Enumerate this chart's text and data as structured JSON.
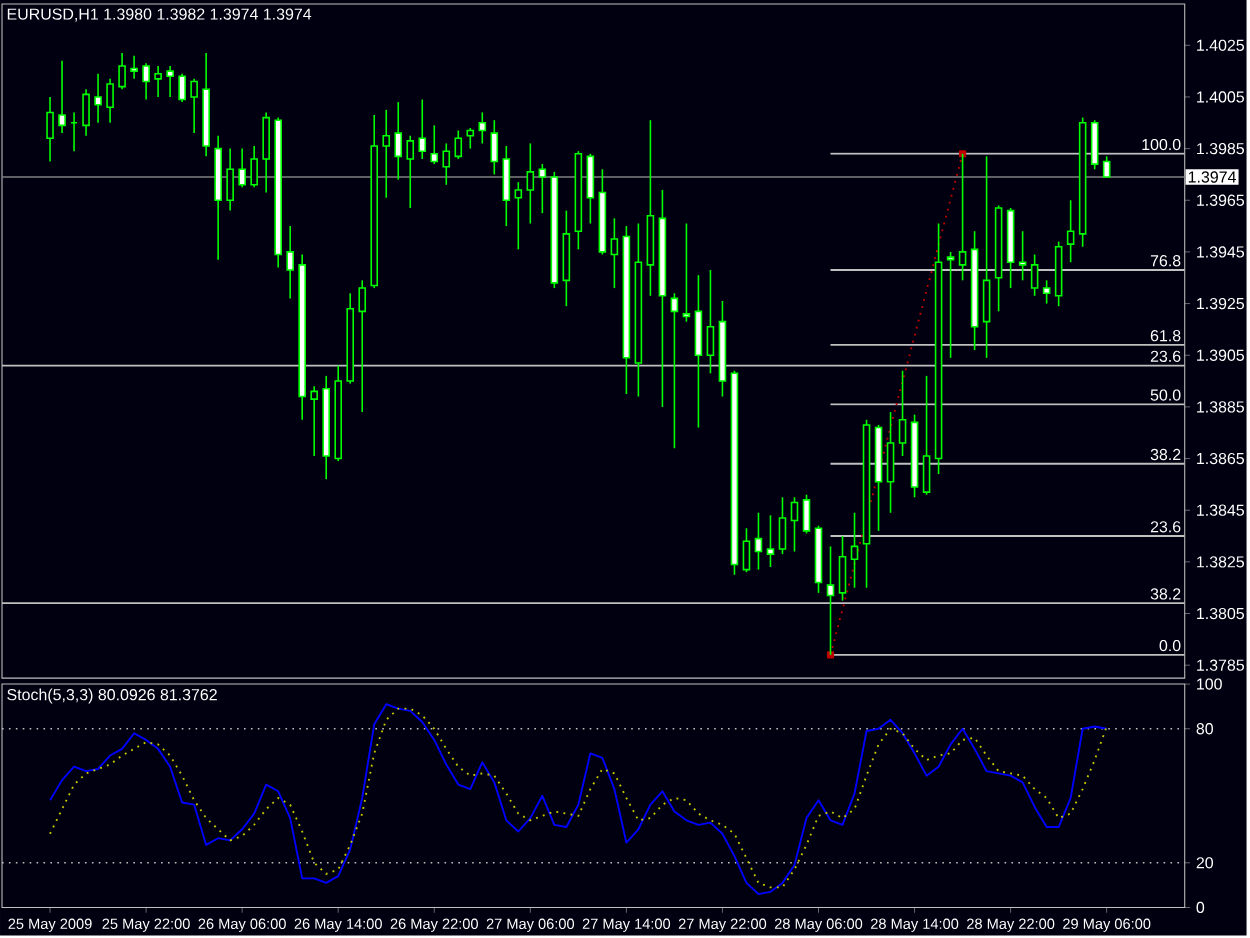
{
  "chart_data": [
    {
      "type": "candlestick",
      "title": "EURUSD,H1 1.3980 1.3982 1.3974 1.3974",
      "color": "#00ff00",
      "x": [
        "2009-05-25T14:00",
        "2009-05-25T15:00",
        "2009-05-25T16:00",
        "2009-05-25T17:00",
        "2009-05-25T18:00",
        "2009-05-25T19:00",
        "2009-05-25T20:00",
        "2009-05-25T21:00",
        "2009-05-25T22:00",
        "2009-05-25T23:00",
        "2009-05-26T00:00",
        "2009-05-26T01:00",
        "2009-05-26T02:00",
        "2009-05-26T03:00",
        "2009-05-26T04:00",
        "2009-05-26T05:00",
        "2009-05-26T06:00",
        "2009-05-26T07:00",
        "2009-05-26T08:00",
        "2009-05-26T09:00",
        "2009-05-26T10:00",
        "2009-05-26T11:00",
        "2009-05-26T12:00",
        "2009-05-26T13:00",
        "2009-05-26T14:00",
        "2009-05-26T15:00",
        "2009-05-26T16:00",
        "2009-05-26T17:00",
        "2009-05-26T18:00",
        "2009-05-26T19:00",
        "2009-05-26T20:00",
        "2009-05-26T21:00",
        "2009-05-26T22:00",
        "2009-05-26T23:00",
        "2009-05-27T00:00",
        "2009-05-27T01:00",
        "2009-05-27T02:00",
        "2009-05-27T03:00",
        "2009-05-27T04:00",
        "2009-05-27T05:00",
        "2009-05-27T06:00",
        "2009-05-27T07:00",
        "2009-05-27T08:00",
        "2009-05-27T09:00",
        "2009-05-27T10:00",
        "2009-05-27T11:00",
        "2009-05-27T12:00",
        "2009-05-27T13:00",
        "2009-05-27T14:00",
        "2009-05-27T15:00",
        "2009-05-27T16:00",
        "2009-05-27T17:00",
        "2009-05-27T18:00",
        "2009-05-27T19:00",
        "2009-05-27T20:00",
        "2009-05-27T21:00",
        "2009-05-27T22:00",
        "2009-05-27T23:00",
        "2009-05-28T00:00",
        "2009-05-28T01:00",
        "2009-05-28T02:00",
        "2009-05-28T03:00",
        "2009-05-28T04:00",
        "2009-05-28T05:00",
        "2009-05-28T06:00",
        "2009-05-28T07:00",
        "2009-05-28T08:00",
        "2009-05-28T09:00",
        "2009-05-28T10:00",
        "2009-05-28T11:00",
        "2009-05-28T12:00",
        "2009-05-28T13:00",
        "2009-05-28T14:00",
        "2009-05-28T15:00",
        "2009-05-28T16:00",
        "2009-05-28T17:00",
        "2009-05-28T18:00",
        "2009-05-28T19:00",
        "2009-05-28T20:00",
        "2009-05-28T21:00",
        "2009-05-28T22:00",
        "2009-05-28T23:00",
        "2009-05-29T00:00",
        "2009-05-29T01:00",
        "2009-05-29T02:00",
        "2009-05-29T03:00",
        "2009-05-29T04:00",
        "2009-05-29T05:00",
        "2009-05-29T06:00"
      ],
      "ohlc": [
        [
          1.3989,
          1.4005,
          1.398,
          1.3999
        ],
        [
          1.3998,
          1.4019,
          1.3991,
          1.3994
        ],
        [
          1.3995,
          1.3999,
          1.3984,
          1.3995
        ],
        [
          1.3994,
          1.4008,
          1.399,
          1.4006
        ],
        [
          1.4005,
          1.4014,
          1.3995,
          1.4002
        ],
        [
          1.4001,
          1.4012,
          1.3995,
          1.401
        ],
        [
          1.4009,
          1.4022,
          1.4008,
          1.4017
        ],
        [
          1.4016,
          1.4021,
          1.4012,
          1.4015
        ],
        [
          1.4017,
          1.4018,
          1.4004,
          1.4011
        ],
        [
          1.4012,
          1.4017,
          1.4005,
          1.4014
        ],
        [
          1.4015,
          1.4017,
          1.4005,
          1.4013
        ],
        [
          1.4013,
          1.4014,
          1.4003,
          1.4004
        ],
        [
          1.4005,
          1.4012,
          1.3991,
          1.4011
        ],
        [
          1.4008,
          1.4022,
          1.3982,
          1.3986
        ],
        [
          1.3985,
          1.399,
          1.3942,
          1.3965
        ],
        [
          1.3965,
          1.3985,
          1.3961,
          1.3977
        ],
        [
          1.3977,
          1.3985,
          1.397,
          1.3971
        ],
        [
          1.3971,
          1.3986,
          1.397,
          1.3981
        ],
        [
          1.3981,
          1.3999,
          1.3968,
          1.3997
        ],
        [
          1.3996,
          1.3997,
          1.3939,
          1.3944
        ],
        [
          1.3945,
          1.3955,
          1.3927,
          1.3938
        ],
        [
          1.394,
          1.3944,
          1.388,
          1.3889
        ],
        [
          1.3888,
          1.3893,
          1.3866,
          1.3891
        ],
        [
          1.3892,
          1.3897,
          1.3857,
          1.3866
        ],
        [
          1.3865,
          1.3901,
          1.3864,
          1.3895
        ],
        [
          1.3895,
          1.3929,
          1.3894,
          1.3923
        ],
        [
          1.3922,
          1.3934,
          1.3883,
          1.3931
        ],
        [
          1.3932,
          1.3998,
          1.3931,
          1.3986
        ],
        [
          1.3986,
          1.4,
          1.3966,
          1.399
        ],
        [
          1.3991,
          1.4003,
          1.3973,
          1.3982
        ],
        [
          1.3981,
          1.399,
          1.3962,
          1.3988
        ],
        [
          1.3989,
          1.4004,
          1.3981,
          1.3984
        ],
        [
          1.3983,
          1.3994,
          1.3979,
          1.398
        ],
        [
          1.3978,
          1.3987,
          1.3971,
          1.3984
        ],
        [
          1.3982,
          1.3992,
          1.3981,
          1.3989
        ],
        [
          1.399,
          1.3993,
          1.3985,
          1.3992
        ],
        [
          1.3995,
          1.3999,
          1.3987,
          1.3992
        ],
        [
          1.3991,
          1.3996,
          1.3975,
          1.398
        ],
        [
          1.3981,
          1.3986,
          1.3955,
          1.3965
        ],
        [
          1.3966,
          1.3972,
          1.3946,
          1.3969
        ],
        [
          1.3969,
          1.3987,
          1.3956,
          1.3976
        ],
        [
          1.3977,
          1.3979,
          1.396,
          1.3974
        ],
        [
          1.3974,
          1.3976,
          1.3931,
          1.3933
        ],
        [
          1.3934,
          1.3961,
          1.3924,
          1.3952
        ],
        [
          1.3953,
          1.3984,
          1.3946,
          1.3983
        ],
        [
          1.3982,
          1.3983,
          1.3956,
          1.3966
        ],
        [
          1.3968,
          1.3977,
          1.3944,
          1.3945
        ],
        [
          1.3944,
          1.3958,
          1.3931,
          1.395
        ],
        [
          1.3951,
          1.3955,
          1.389,
          1.3904
        ],
        [
          1.3902,
          1.3956,
          1.3889,
          1.3941
        ],
        [
          1.394,
          1.3996,
          1.3928,
          1.3959
        ],
        [
          1.3958,
          1.3969,
          1.3885,
          1.3928
        ],
        [
          1.3927,
          1.3929,
          1.3869,
          1.3922
        ],
        [
          1.3921,
          1.3956,
          1.3918,
          1.392
        ],
        [
          1.3922,
          1.3936,
          1.3877,
          1.3905
        ],
        [
          1.3905,
          1.3938,
          1.3898,
          1.3916
        ],
        [
          1.3918,
          1.3926,
          1.3889,
          1.3895
        ],
        [
          1.3898,
          1.3899,
          1.382,
          1.3824
        ],
        [
          1.3822,
          1.3838,
          1.3821,
          1.3833
        ],
        [
          1.3834,
          1.3844,
          1.3822,
          1.3829
        ],
        [
          1.383,
          1.3843,
          1.3823,
          1.3828
        ],
        [
          1.383,
          1.385,
          1.3828,
          1.3842
        ],
        [
          1.3841,
          1.385,
          1.3829,
          1.3848
        ],
        [
          1.3849,
          1.3851,
          1.3836,
          1.3837
        ],
        [
          1.3838,
          1.3839,
          1.3813,
          1.3817
        ],
        [
          1.3816,
          1.3831,
          1.3789,
          1.3812
        ],
        [
          1.3813,
          1.3835,
          1.381,
          1.3827
        ],
        [
          1.3826,
          1.3844,
          1.3815,
          1.3831
        ],
        [
          1.3832,
          1.388,
          1.3815,
          1.3878
        ],
        [
          1.3877,
          1.3878,
          1.3837,
          1.3856
        ],
        [
          1.3856,
          1.3883,
          1.3844,
          1.3871
        ],
        [
          1.3871,
          1.3899,
          1.3866,
          1.388
        ],
        [
          1.3879,
          1.3882,
          1.385,
          1.3854
        ],
        [
          1.3852,
          1.3897,
          1.3851,
          1.3866
        ],
        [
          1.3865,
          1.3956,
          1.3859,
          1.3941
        ],
        [
          1.3943,
          1.3945,
          1.3904,
          1.3942
        ],
        [
          1.394,
          1.3983,
          1.3934,
          1.3945
        ],
        [
          1.3946,
          1.3953,
          1.3907,
          1.3916
        ],
        [
          1.3918,
          1.3982,
          1.3904,
          1.3934
        ],
        [
          1.3935,
          1.3963,
          1.3922,
          1.3962
        ],
        [
          1.3961,
          1.3962,
          1.3931,
          1.3941
        ],
        [
          1.3941,
          1.3953,
          1.3934,
          1.394
        ],
        [
          1.3931,
          1.3944,
          1.3928,
          1.394
        ],
        [
          1.3931,
          1.3934,
          1.3925,
          1.3929
        ],
        [
          1.3928,
          1.3949,
          1.3924,
          1.3947
        ],
        [
          1.3948,
          1.3965,
          1.3941,
          1.3953
        ],
        [
          1.3952,
          1.3997,
          1.3947,
          1.3995
        ],
        [
          1.3995,
          1.3996,
          1.3977,
          1.3979
        ],
        [
          1.398,
          1.3982,
          1.3974,
          1.3974
        ]
      ],
      "series": [
        {
          "type": "line",
          "name": "100.0",
          "color": "#c0c0c0",
          "x": [
            "2009-05-28T07:00",
            "2009-05-29T12:30"
          ],
          "values": [
            1.3983,
            1.3983
          ]
        },
        {
          "type": "line",
          "name": "76.8",
          "color": "#c0c0c0",
          "x": [
            "2009-05-28T07:00",
            "2009-05-29T12:30"
          ],
          "values": [
            1.3938,
            1.3938
          ]
        },
        {
          "type": "line",
          "name": "61.8",
          "color": "#c0c0c0",
          "x": [
            "2009-05-28T07:00",
            "2009-05-29T12:30"
          ],
          "values": [
            1.3909,
            1.3909
          ]
        },
        {
          "type": "line",
          "name": "50.0",
          "color": "#c0c0c0",
          "x": [
            "2009-05-28T07:00",
            "2009-05-29T12:30"
          ],
          "values": [
            1.3886,
            1.3886
          ]
        },
        {
          "type": "line",
          "name": "38.2",
          "color": "#c0c0c0",
          "x": [
            "2009-05-28T07:00",
            "2009-05-29T12:30"
          ],
          "values": [
            1.3863,
            1.3863
          ]
        },
        {
          "type": "line",
          "name": "23.6",
          "color": "#c0c0c0",
          "x": [
            "2009-05-28T07:00",
            "2009-05-29T12:30"
          ],
          "values": [
            1.3835,
            1.3835
          ]
        },
        {
          "type": "line",
          "name": "0.0",
          "color": "#c0c0c0",
          "x": [
            "2009-05-28T07:00",
            "2009-05-29T12:30"
          ],
          "values": [
            1.3789,
            1.3789
          ]
        },
        {
          "type": "line",
          "name": "23.6",
          "color": "#c0c0c0",
          "x": [
            "2009-05-25T10:00",
            "2009-05-29T12:30"
          ],
          "values": [
            1.3901,
            1.3901
          ]
        },
        {
          "type": "line",
          "name": "38.2",
          "color": "#c0c0c0",
          "x": [
            "2009-05-25T10:00",
            "2009-05-29T12:30"
          ],
          "values": [
            1.3809,
            1.3809
          ]
        },
        {
          "type": "line",
          "color": "#c00000",
          "line_style": "dotted",
          "marker": "square",
          "x": [
            "2009-05-28T07:00",
            "2009-05-28T18:00"
          ],
          "values": [
            1.3789,
            1.3983
          ]
        }
      ],
      "ref_lines": [
        {
          "axis": "y",
          "value": 1.3974,
          "label": "1.3974",
          "color": "#808080"
        }
      ],
      "legend": "right",
      "xlim": [
        "2009-05-25T10:00",
        "2009-05-29T12:30"
      ],
      "ylim": [
        1.378,
        1.4041
      ],
      "yticks": [
        1.4025,
        1.4005,
        1.3985,
        1.3965,
        1.3945,
        1.3925,
        1.3905,
        1.3885,
        1.3865,
        1.3845,
        1.3825,
        1.3805,
        1.3785
      ],
      "tick_labels": "y"
    },
    {
      "type": "line",
      "title": "Stoch(5,3,3) 80.0926 81.3762",
      "x": [
        "2009-05-25T14:00",
        "2009-05-25T15:00",
        "2009-05-25T16:00",
        "2009-05-25T17:00",
        "2009-05-25T18:00",
        "2009-05-25T19:00",
        "2009-05-25T20:00",
        "2009-05-25T21:00",
        "2009-05-25T22:00",
        "2009-05-25T23:00",
        "2009-05-26T00:00",
        "2009-05-26T01:00",
        "2009-05-26T02:00",
        "2009-05-26T03:00",
        "2009-05-26T04:00",
        "2009-05-26T05:00",
        "2009-05-26T06:00",
        "2009-05-26T07:00",
        "2009-05-26T08:00",
        "2009-05-26T09:00",
        "2009-05-26T10:00",
        "2009-05-26T11:00",
        "2009-05-26T12:00",
        "2009-05-26T13:00",
        "2009-05-26T14:00",
        "2009-05-26T15:00",
        "2009-05-26T16:00",
        "2009-05-26T17:00",
        "2009-05-26T18:00",
        "2009-05-26T19:00",
        "2009-05-26T20:00",
        "2009-05-26T21:00",
        "2009-05-26T22:00",
        "2009-05-26T23:00",
        "2009-05-27T00:00",
        "2009-05-27T01:00",
        "2009-05-27T02:00",
        "2009-05-27T03:00",
        "2009-05-27T04:00",
        "2009-05-27T05:00",
        "2009-05-27T06:00",
        "2009-05-27T07:00",
        "2009-05-27T08:00",
        "2009-05-27T09:00",
        "2009-05-27T10:00",
        "2009-05-27T11:00",
        "2009-05-27T12:00",
        "2009-05-27T13:00",
        "2009-05-27T14:00",
        "2009-05-27T15:00",
        "2009-05-27T16:00",
        "2009-05-27T17:00",
        "2009-05-27T18:00",
        "2009-05-27T19:00",
        "2009-05-27T20:00",
        "2009-05-27T21:00",
        "2009-05-27T22:00",
        "2009-05-27T23:00",
        "2009-05-28T00:00",
        "2009-05-28T01:00",
        "2009-05-28T02:00",
        "2009-05-28T03:00",
        "2009-05-28T04:00",
        "2009-05-28T05:00",
        "2009-05-28T06:00",
        "2009-05-28T07:00",
        "2009-05-28T08:00",
        "2009-05-28T09:00",
        "2009-05-28T10:00",
        "2009-05-28T11:00",
        "2009-05-28T12:00",
        "2009-05-28T13:00",
        "2009-05-28T14:00",
        "2009-05-28T15:00",
        "2009-05-28T16:00",
        "2009-05-28T17:00",
        "2009-05-28T18:00",
        "2009-05-28T19:00",
        "2009-05-28T20:00",
        "2009-05-28T21:00",
        "2009-05-28T22:00",
        "2009-05-28T23:00",
        "2009-05-29T00:00",
        "2009-05-29T01:00",
        "2009-05-29T02:00",
        "2009-05-29T03:00",
        "2009-05-29T04:00",
        "2009-05-29T05:00",
        "2009-05-29T06:00"
      ],
      "series": [
        {
          "color": "#0000ff",
          "values": [
            48,
            57,
            63,
            61,
            62,
            68,
            71,
            78,
            75,
            71,
            63,
            47,
            46,
            28,
            31,
            30,
            35,
            42,
            55,
            52,
            40,
            13,
            13,
            11,
            14,
            26,
            49,
            82,
            91,
            89,
            88,
            83,
            75,
            64,
            55,
            53,
            65,
            56,
            39,
            34,
            40,
            50,
            37,
            36,
            46,
            69,
            67,
            53,
            29,
            35,
            46,
            52,
            43,
            39,
            37,
            38,
            33,
            23,
            11,
            6,
            7,
            11,
            19,
            40,
            48,
            39,
            37,
            51,
            79,
            80,
            84,
            78,
            69,
            59,
            63,
            73,
            80,
            71,
            61,
            60,
            59,
            56,
            45,
            36,
            36,
            49,
            80,
            81,
            80
          ]
        },
        {
          "color": "#c8c800",
          "line_style": "dotted",
          "values": [
            33,
            44,
            55,
            60,
            62,
            64,
            68,
            71,
            74,
            73,
            68,
            59,
            48,
            40,
            35,
            30,
            32,
            37,
            44,
            49,
            46,
            34,
            20,
            15,
            17,
            28,
            42,
            69,
            84,
            89,
            89,
            86,
            80,
            71,
            63,
            59,
            60,
            59,
            51,
            42,
            39,
            41,
            43,
            42,
            41,
            53,
            62,
            60,
            49,
            39,
            40,
            46,
            49,
            48,
            42,
            39,
            37,
            33,
            22,
            11,
            9,
            9,
            17,
            28,
            41,
            43,
            40,
            44,
            59,
            73,
            80,
            78,
            71,
            66,
            68,
            69,
            75,
            76,
            68,
            61,
            60,
            59,
            53,
            49,
            40,
            42,
            53,
            66,
            81
          ]
        }
      ],
      "ref_lines": [
        {
          "axis": "y",
          "value": 20,
          "color": "#c0c0c0",
          "line_style": "dotted"
        },
        {
          "axis": "y",
          "value": 80,
          "color": "#c0c0c0",
          "line_style": "dotted"
        }
      ],
      "xlim": [
        "2009-05-25T10:00",
        "2009-05-29T12:30"
      ],
      "ylim": [
        0,
        100
      ],
      "yticks": [
        0,
        20,
        80,
        100
      ],
      "xticks": [
        {
          "value": "2009-05-25T14:00",
          "label": "25 May 2009"
        },
        {
          "value": "2009-05-25T22:00",
          "label": "25 May 22:00"
        },
        {
          "value": "2009-05-26T06:00",
          "label": "26 May 06:00"
        },
        {
          "value": "2009-05-26T14:00",
          "label": "26 May 14:00"
        },
        {
          "value": "2009-05-26T22:00",
          "label": "26 May 22:00"
        },
        {
          "value": "2009-05-27T06:00",
          "label": "27 May 06:00"
        },
        {
          "value": "2009-05-27T14:00",
          "label": "27 May 14:00"
        },
        {
          "value": "2009-05-27T22:00",
          "label": "27 May 22:00"
        },
        {
          "value": "2009-05-28T06:00",
          "label": "28 May 06:00"
        },
        {
          "value": "2009-05-28T14:00",
          "label": "28 May 14:00"
        },
        {
          "value": "2009-05-28T22:00",
          "label": "28 May 22:00"
        },
        {
          "value": "2009-05-29T06:00",
          "label": "29 May 06:00"
        }
      ]
    }
  ]
}
